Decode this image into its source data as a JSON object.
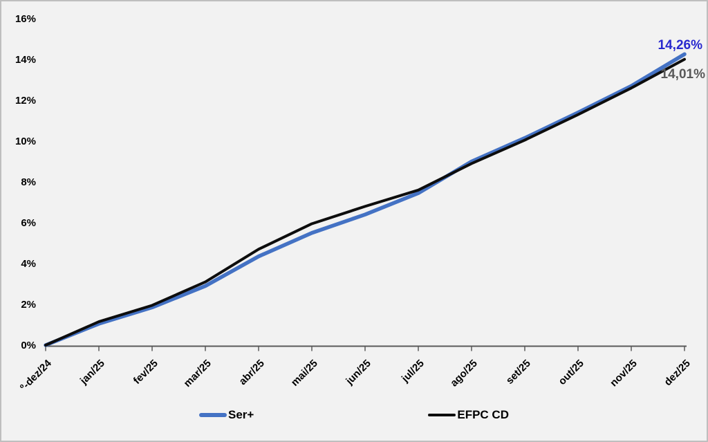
{
  "window": {
    "background": "#f2f2f2",
    "border_color": "#bfbfbf"
  },
  "chart_data": {
    "type": "line",
    "title": "",
    "xlabel": "",
    "ylabel": "",
    "categories": [
      "º-dez/24",
      "jan/25",
      "fev/25",
      "mar/25",
      "abr/25",
      "mai/25",
      "jun/25",
      "jul/25",
      "ago/25",
      "set/25",
      "out/25",
      "nov/25",
      "dez/25"
    ],
    "series": [
      {
        "name": "Ser+",
        "color": "#4472C4",
        "values": [
          0,
          1.05,
          1.85,
          2.9,
          4.35,
          5.5,
          6.4,
          7.45,
          9.0,
          10.15,
          11.4,
          12.7,
          14.26
        ],
        "end_label": "14,26%",
        "end_label_color": "#2828CE"
      },
      {
        "name": "EFPC CD",
        "color": "#0D0D0D",
        "values": [
          0,
          1.15,
          1.95,
          3.1,
          4.7,
          5.95,
          6.8,
          7.6,
          8.9,
          10.05,
          11.3,
          12.6,
          14.01
        ],
        "end_label": "14,01%",
        "end_label_color": "#595959"
      }
    ],
    "y_tick_labels": [
      "0%",
      "2%",
      "4%",
      "6%",
      "8%",
      "10%",
      "12%",
      "14%",
      "16%"
    ],
    "ylim": [
      0,
      16
    ],
    "grid": false,
    "legend_position": "bottom",
    "axis_color": "#595959",
    "tick_label_color": "#000000"
  }
}
